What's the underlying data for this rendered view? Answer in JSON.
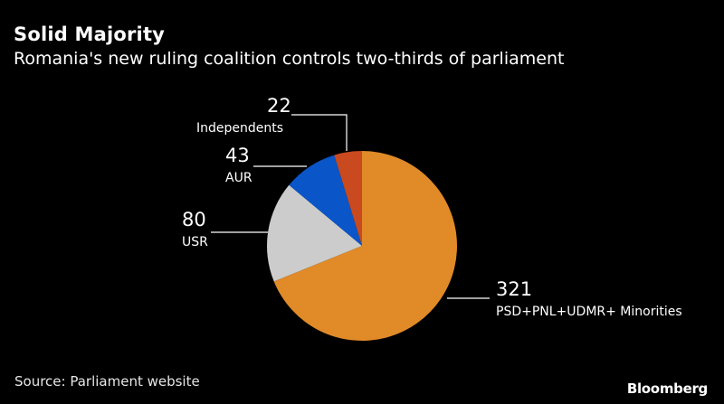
{
  "chart_data": {
    "type": "pie",
    "title": "Solid Majority",
    "subtitle": "Romania's new ruling coalition controls two-thirds of parliament",
    "start": "12 o'clock",
    "direction": "clockwise",
    "slices": [
      {
        "label": "PSD+PNL+UDMR+ Minorities",
        "value": 321,
        "color": "#e08a28"
      },
      {
        "label": "USR",
        "value": 80,
        "color": "#cccccc"
      },
      {
        "label": "AUR",
        "value": 43,
        "color": "#0a55c8"
      },
      {
        "label": "Independents",
        "value": 22,
        "color": "#c84a1e"
      }
    ],
    "value_labels": [
      "321",
      "80",
      "43",
      "22"
    ],
    "source": "Source: Parliament website"
  },
  "branding": {
    "logo_text": "Bloomberg"
  }
}
